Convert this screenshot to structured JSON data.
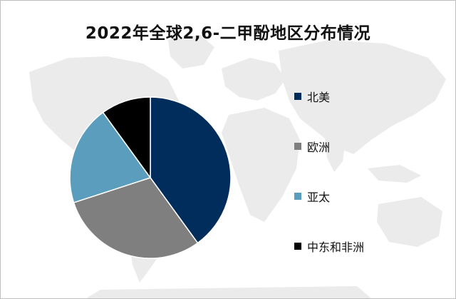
{
  "chart_data": {
    "type": "pie",
    "title": "2022年全球2,6-二甲酚地区分布情况",
    "categories": [
      "北美",
      "欧洲",
      "亚太",
      "中东和非洲"
    ],
    "values": [
      40,
      30,
      20,
      10
    ],
    "colors": [
      "#002d5c",
      "#7f7f7f",
      "#5b9dbd",
      "#000000"
    ],
    "legend_position": "right"
  },
  "background": {
    "map_icon": "world-map-watermark",
    "map_color": "#ebebeb"
  }
}
